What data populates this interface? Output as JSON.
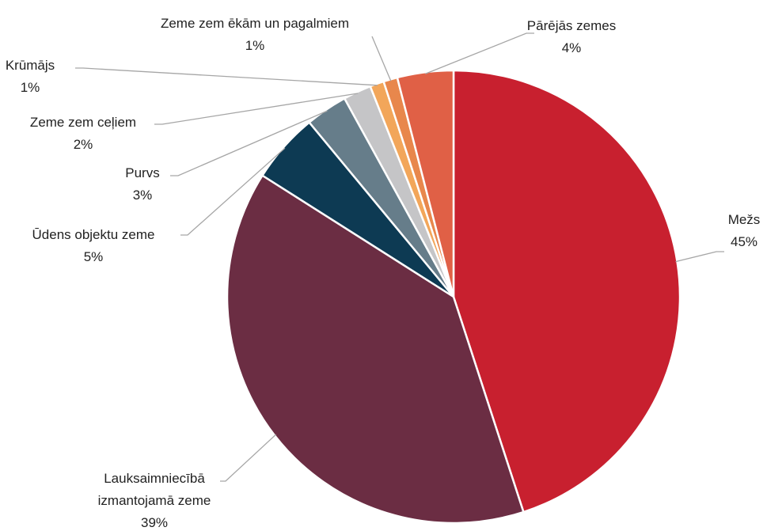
{
  "chart_data": {
    "type": "pie",
    "categories": [
      "Mežs",
      "Lauksaimniecībā izmantojamā zeme",
      "Ūdens objektu zeme",
      "Purvs",
      "Zeme zem ceļiem",
      "Krūmājs",
      "Zeme zem ēkām un pagalmiem",
      "Pārējās zemes"
    ],
    "values": [
      45,
      39,
      5,
      3,
      2,
      1,
      1,
      4
    ],
    "value_labels": [
      "45%",
      "39%",
      "5%",
      "3%",
      "2%",
      "1%",
      "1%",
      "4%"
    ],
    "colors": [
      "#c8202f",
      "#6b2d43",
      "#0d3a53",
      "#667d8a",
      "#c5c5c7",
      "#f2a65a",
      "#e8874c",
      "#e06046"
    ]
  }
}
